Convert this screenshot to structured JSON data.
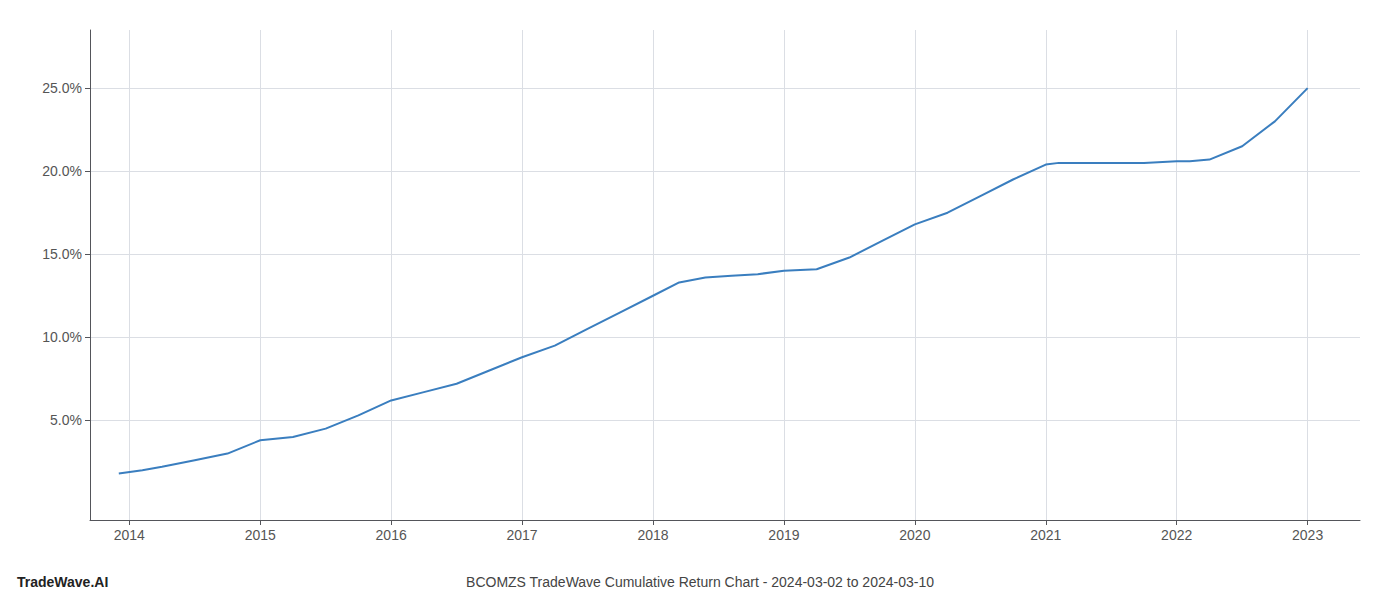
{
  "chart_data": {
    "type": "line",
    "title": "BCOMZS TradeWave Cumulative Return Chart - 2024-03-02 to 2024-03-10",
    "annotations": [
      "TradeWave.AI"
    ],
    "x": [
      2013.92,
      2014.1,
      2014.25,
      2014.5,
      2014.75,
      2015.0,
      2015.25,
      2015.5,
      2015.75,
      2016.0,
      2016.25,
      2016.5,
      2016.75,
      2017.0,
      2017.25,
      2017.5,
      2017.75,
      2018.0,
      2018.2,
      2018.4,
      2018.6,
      2018.8,
      2019.0,
      2019.25,
      2019.5,
      2019.75,
      2020.0,
      2020.25,
      2020.5,
      2020.75,
      2021.0,
      2021.1,
      2021.25,
      2021.5,
      2021.75,
      2022.0,
      2022.1,
      2022.25,
      2022.5,
      2022.75,
      2023.0
    ],
    "values": [
      1.8,
      2.0,
      2.2,
      2.6,
      3.0,
      3.8,
      4.0,
      4.5,
      5.3,
      6.2,
      6.7,
      7.2,
      8.0,
      8.8,
      9.5,
      10.5,
      11.5,
      12.5,
      13.3,
      13.6,
      13.7,
      13.8,
      14.0,
      14.1,
      14.8,
      15.8,
      16.8,
      17.5,
      18.5,
      19.5,
      20.4,
      20.5,
      20.5,
      20.5,
      20.5,
      20.6,
      20.6,
      20.7,
      21.5,
      23.0,
      25.0
    ],
    "color": "#3a7ebf",
    "xlim": [
      2013.7,
      2023.4
    ],
    "xticks": [
      2014,
      2015,
      2016,
      2017,
      2018,
      2019,
      2020,
      2021,
      2022,
      2023
    ],
    "ylim": [
      -1.0,
      28.5
    ],
    "yticks": [
      {
        "value": 5.0,
        "label": "5.0%"
      },
      {
        "value": 10.0,
        "label": "10.0%"
      },
      {
        "value": 15.0,
        "label": "15.0%"
      },
      {
        "value": 20.0,
        "label": "20.0%"
      },
      {
        "value": 25.0,
        "label": "25.0%"
      }
    ],
    "grid": true
  }
}
